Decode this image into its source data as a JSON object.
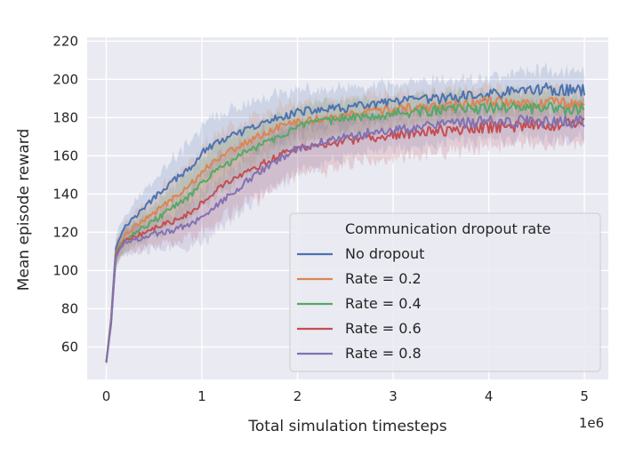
{
  "chart_data": {
    "type": "line",
    "xlabel": "Total simulation timesteps",
    "ylabel": "Mean episode reward",
    "x_offset_label": "1e6",
    "xlim": [
      -0.2,
      5.25
    ],
    "ylim": [
      43,
      222
    ],
    "xticks": [
      0,
      1,
      2,
      3,
      4,
      5
    ],
    "xtick_labels": [
      "0",
      "1",
      "2",
      "3",
      "4",
      "5"
    ],
    "yticks": [
      60,
      80,
      100,
      120,
      140,
      160,
      180,
      200,
      220
    ],
    "ytick_labels": [
      "60",
      "80",
      "100",
      "120",
      "140",
      "160",
      "180",
      "200",
      "220"
    ],
    "grid": true,
    "legend": {
      "title": "Communication dropout rate",
      "placement": "lower-right"
    },
    "series": [
      {
        "name": "No dropout",
        "color": "#4c72b0",
        "x": [
          0,
          0.05,
          0.1,
          0.2,
          0.3,
          0.5,
          0.7,
          0.9,
          1.0,
          1.2,
          1.5,
          1.8,
          2.0,
          2.5,
          3.0,
          3.5,
          4.0,
          4.5,
          5.0
        ],
        "y": [
          52,
          75,
          112,
          124,
          128,
          138,
          147,
          154,
          162,
          168,
          174,
          180,
          183,
          185,
          188,
          190,
          192,
          195,
          194
        ],
        "band": [
          2,
          4,
          6,
          7,
          8,
          10,
          12,
          13,
          14,
          14,
          13,
          12,
          11,
          10,
          9,
          9,
          9,
          10,
          10
        ]
      },
      {
        "name": "Rate = 0.2",
        "color": "#dd8452",
        "x": [
          0,
          0.05,
          0.1,
          0.2,
          0.3,
          0.5,
          0.7,
          0.9,
          1.0,
          1.2,
          1.5,
          1.8,
          2.0,
          2.5,
          3.0,
          3.5,
          4.0,
          4.5,
          5.0
        ],
        "y": [
          52,
          74,
          110,
          119,
          123,
          130,
          138,
          146,
          152,
          160,
          168,
          175,
          178,
          181,
          184,
          186,
          188,
          188,
          188
        ],
        "band": [
          2,
          4,
          5,
          6,
          7,
          9,
          11,
          12,
          13,
          13,
          12,
          11,
          10,
          9,
          8,
          8,
          8,
          8,
          8
        ]
      },
      {
        "name": "Rate = 0.4",
        "color": "#55a868",
        "x": [
          0,
          0.05,
          0.1,
          0.2,
          0.3,
          0.5,
          0.7,
          0.9,
          1.0,
          1.2,
          1.5,
          1.8,
          2.0,
          2.5,
          3.0,
          3.5,
          4.0,
          4.5,
          5.0
        ],
        "y": [
          52,
          74,
          109,
          117,
          120,
          126,
          133,
          140,
          146,
          154,
          163,
          170,
          175,
          180,
          182,
          184,
          185,
          185,
          184
        ],
        "band": [
          2,
          4,
          5,
          6,
          7,
          9,
          11,
          12,
          13,
          13,
          12,
          11,
          10,
          9,
          8,
          8,
          8,
          8,
          8
        ]
      },
      {
        "name": "Rate = 0.6",
        "color": "#c44e52",
        "x": [
          0,
          0.05,
          0.1,
          0.2,
          0.3,
          0.5,
          0.7,
          0.9,
          1.0,
          1.2,
          1.5,
          1.8,
          2.0,
          2.5,
          3.0,
          3.5,
          4.0,
          4.5,
          5.0
        ],
        "y": [
          52,
          73,
          108,
          116,
          118,
          122,
          126,
          131,
          136,
          144,
          152,
          160,
          164,
          168,
          171,
          173,
          175,
          176,
          177
        ],
        "band": [
          2,
          4,
          5,
          6,
          7,
          9,
          11,
          13,
          15,
          16,
          16,
          15,
          14,
          13,
          12,
          11,
          10,
          10,
          10
        ]
      },
      {
        "name": "Rate = 0.8",
        "color": "#8172b3",
        "x": [
          0,
          0.05,
          0.1,
          0.2,
          0.3,
          0.5,
          0.7,
          0.9,
          1.0,
          1.2,
          1.5,
          1.8,
          2.0,
          2.5,
          3.0,
          3.5,
          4.0,
          4.5,
          5.0
        ],
        "y": [
          52,
          72,
          107,
          115,
          116,
          119,
          121,
          125,
          128,
          136,
          148,
          158,
          164,
          170,
          174,
          176,
          178,
          178,
          178
        ],
        "band": [
          2,
          4,
          5,
          6,
          7,
          8,
          10,
          12,
          13,
          14,
          14,
          13,
          12,
          11,
          10,
          10,
          9,
          9,
          9
        ]
      }
    ]
  }
}
